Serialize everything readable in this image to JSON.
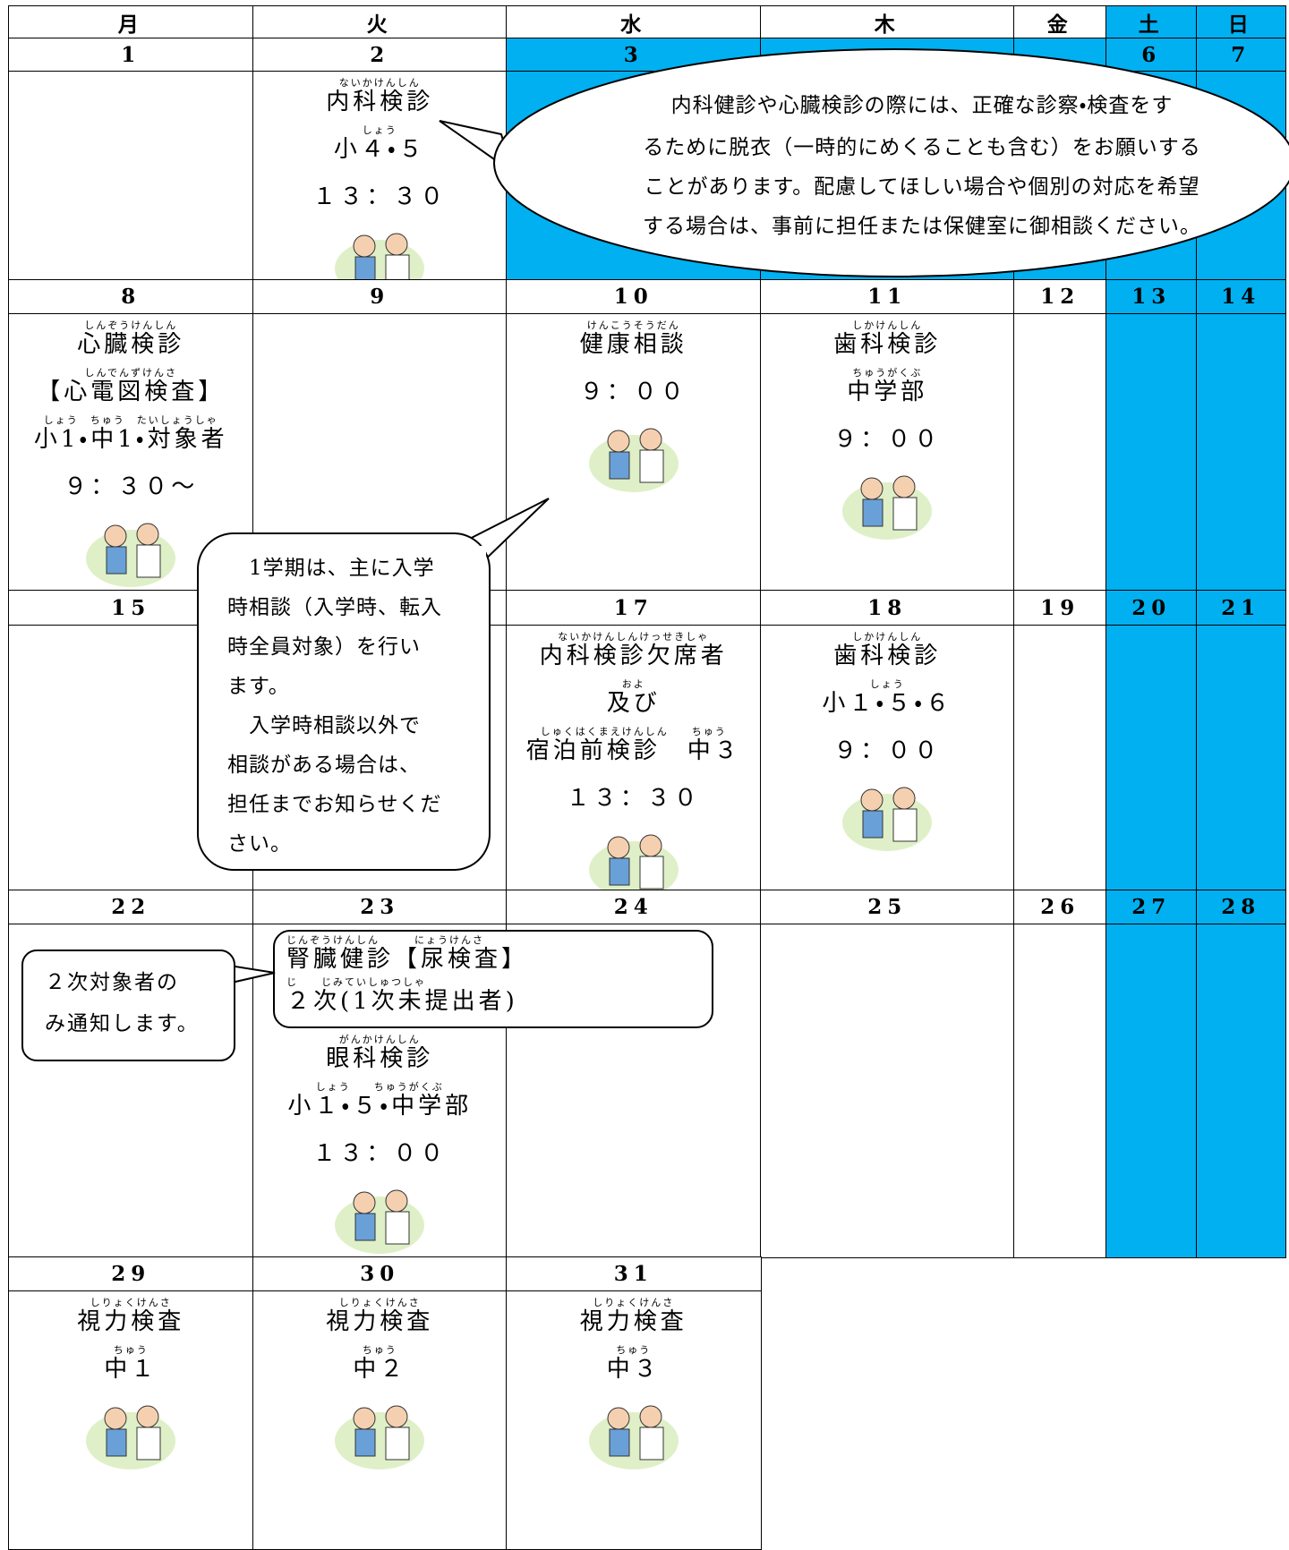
{
  "header": {
    "days": [
      "月",
      "火",
      "水",
      "木",
      "金",
      "土",
      "日"
    ]
  },
  "weeks": [
    {
      "dates": [
        "1",
        "2",
        "3",
        null,
        null,
        "6",
        "7"
      ],
      "cells": [
        [],
        [
          {
            "ruby": "ないかけんしん",
            "text": "内科検診"
          },
          {
            "ruby": "しょう",
            "text": "小４・５"
          },
          {
            "text": "１３：３０"
          }
        ],
        [],
        [],
        [],
        [],
        []
      ]
    },
    {
      "dates": [
        "8",
        "9",
        "10",
        "11",
        "12",
        "13",
        "14"
      ],
      "cells": [
        [
          {
            "ruby": "しんぞうけんしん",
            "text": "心臓検診"
          },
          {
            "ruby": "しんでんずけんさ",
            "text": "【心電図検査】"
          },
          {
            "ruby": "しょう　ちゅう　たいしょうしゃ",
            "text": "小1・中1・対象者"
          },
          {
            "text": "９：３０～"
          }
        ],
        [],
        [
          {
            "ruby": "けんこうそうだん",
            "text": "健康相談"
          },
          {
            "text": "９：００"
          }
        ],
        [
          {
            "ruby": "しかけんしん",
            "text": "歯科検診"
          },
          {
            "ruby": "ちゅうがくぶ",
            "text": "中学部"
          },
          {
            "text": "９：００"
          }
        ],
        [],
        [],
        []
      ]
    },
    {
      "dates": [
        "15",
        null,
        "17",
        "18",
        "19",
        "20",
        "21"
      ],
      "cells": [
        [],
        [],
        [
          {
            "ruby": "ないかけんしんけっせきしゃ",
            "text": "内科検診欠席者"
          },
          {
            "ruby": "およ",
            "text": "及び"
          },
          {
            "ruby": "しゅくはくまえけんしん　　ちゅう",
            "text": "宿泊前検診　中３"
          },
          {
            "text": "１３：３０"
          }
        ],
        [
          {
            "ruby": "しかけんしん",
            "text": "歯科検診"
          },
          {
            "ruby": "しょう",
            "text": "小１・５・６"
          },
          {
            "text": "９：００"
          }
        ],
        [],
        [],
        []
      ]
    },
    {
      "dates": [
        "22",
        "23",
        "24",
        "25",
        "26",
        "27",
        "28"
      ],
      "cells": [
        [],
        [
          {
            "ruby": "がんかけんしん",
            "text": "眼科検診"
          },
          {
            "ruby": "しょう　　ちゅうがくぶ",
            "text": "小１・５・中学部"
          },
          {
            "text": "１３：００"
          }
        ],
        [],
        [],
        [],
        [],
        []
      ]
    },
    {
      "dates": [
        "29",
        "30",
        "31"
      ],
      "cells": [
        [
          {
            "ruby": "しりょくけんさ",
            "text": "視力検査"
          },
          {
            "ruby": "ちゅう",
            "text": "中１"
          }
        ],
        [
          {
            "ruby": "しりょくけんさ",
            "text": "視力検査"
          },
          {
            "ruby": "ちゅう",
            "text": "中２"
          }
        ],
        [
          {
            "ruby": "しりょくけんさ",
            "text": "視力検査"
          },
          {
            "ruby": "ちゅう",
            "text": "中３"
          }
        ]
      ]
    }
  ],
  "box": {
    "lines": [
      {
        "ruby": "じんぞうけんしん　　　にょうけんさ",
        "text": "腎臓健診【尿検査】"
      },
      {
        "ruby": "じ　　じみていしゅつしゃ",
        "text": "２次(1次未提出者)"
      }
    ]
  },
  "notes": [
    {
      "lines": [
        "内科健診や心臓検診の際には、正確な診察・検査をす",
        "るために脱衣（一時的にめくることも含む）をお願いする",
        "ことがあります。配慮してほしい場合や個別の対応を希望",
        "する場合は、事前に担任または保健室に御相談ください。"
      ]
    },
    {
      "lines": [
        "　1学期は、主に入学",
        "時相談（入学時、転入",
        "時全員対象）を行い",
        "ます。",
        "　入学時相談以外で",
        "相談がある場合は、",
        "担任までお知らせくだ",
        "さい。"
      ]
    },
    {
      "lines": [
        "２次対象者の",
        "み通知します。"
      ]
    }
  ]
}
